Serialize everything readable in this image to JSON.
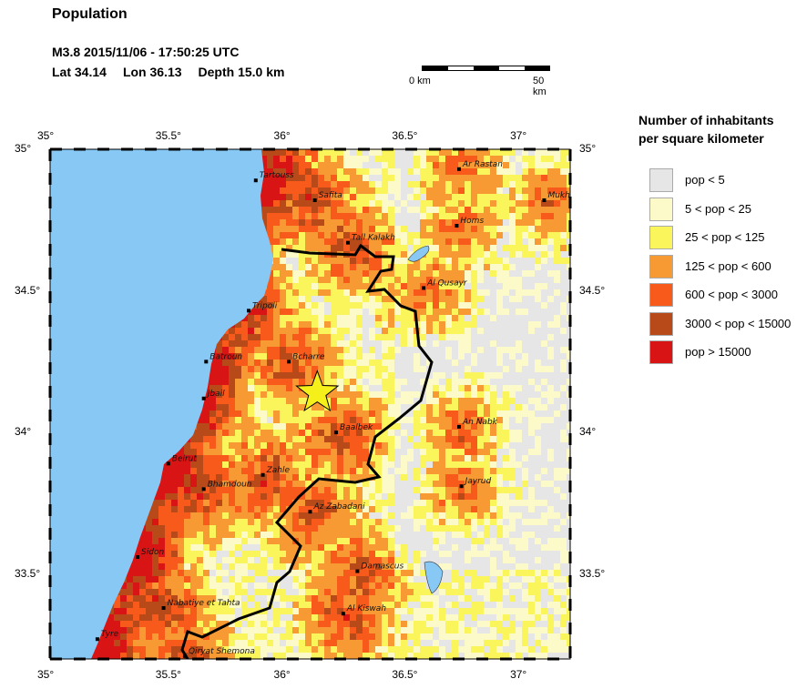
{
  "header": {
    "title": "Population",
    "event_line": "M3.8  2015/11/06 - 17:50:25 UTC",
    "lat": "Lat 34.14",
    "lon": "Lon  36.13",
    "depth": "Depth  15.0 km"
  },
  "scale_bar": {
    "start_label": "0 km",
    "end_label": "50 km"
  },
  "legend": {
    "title_line1": "Number of inhabitants",
    "title_line2": "per square kilometer",
    "items": [
      {
        "label": "pop < 5",
        "color": "#e6e6e6"
      },
      {
        "label": "5 < pop < 25",
        "color": "#fbfac8"
      },
      {
        "label": "25 < pop < 125",
        "color": "#faf55a"
      },
      {
        "label": "125 < pop < 600",
        "color": "#f79a33"
      },
      {
        "label": "600 < pop < 3000",
        "color": "#f75a1a"
      },
      {
        "label": "3000 < pop < 15000",
        "color": "#b84a1a"
      },
      {
        "label": "pop > 15000",
        "color": "#d81414"
      }
    ]
  },
  "axes": {
    "lon_ticks": [
      "35°",
      "35.5°",
      "36°",
      "36.5°",
      "37°"
    ],
    "lat_ticks": [
      "35°",
      "34.5°",
      "34°",
      "33.5°"
    ]
  },
  "map": {
    "sea_color": "#88c8f5",
    "epicenter": {
      "lat": 34.14,
      "lon": 36.13,
      "color": "#f5ef1a"
    },
    "cities": [
      {
        "name": "Tartouss",
        "lon": 35.87,
        "lat": 34.89
      },
      {
        "name": "Safita",
        "lon": 36.12,
        "lat": 34.82
      },
      {
        "name": "Ar Rastan",
        "lon": 36.73,
        "lat": 34.93
      },
      {
        "name": "Mukh",
        "lon": 37.09,
        "lat": 34.82
      },
      {
        "name": "Homs",
        "lon": 36.72,
        "lat": 34.73
      },
      {
        "name": "Tall Kalakh",
        "lon": 36.26,
        "lat": 34.67
      },
      {
        "name": "Al Qusayr",
        "lon": 36.58,
        "lat": 34.51
      },
      {
        "name": "Tripoli",
        "lon": 35.84,
        "lat": 34.43
      },
      {
        "name": "Batroun",
        "lon": 35.66,
        "lat": 34.25
      },
      {
        "name": "Bcharre",
        "lon": 36.01,
        "lat": 34.25
      },
      {
        "name": "Jbail",
        "lon": 35.65,
        "lat": 34.12
      },
      {
        "name": "Baalbek",
        "lon": 36.21,
        "lat": 34.0
      },
      {
        "name": "An Nabk",
        "lon": 36.73,
        "lat": 34.02
      },
      {
        "name": "Beirut",
        "lon": 35.5,
        "lat": 33.89
      },
      {
        "name": "Zahle",
        "lon": 35.9,
        "lat": 33.85
      },
      {
        "name": "Bhamdoun",
        "lon": 35.65,
        "lat": 33.8
      },
      {
        "name": "Jayrud",
        "lon": 36.74,
        "lat": 33.81
      },
      {
        "name": "Az Zabadani",
        "lon": 36.1,
        "lat": 33.72
      },
      {
        "name": "Sidon",
        "lon": 35.37,
        "lat": 33.56
      },
      {
        "name": "Damascus",
        "lon": 36.3,
        "lat": 33.51
      },
      {
        "name": "Nabatiye et Tahta",
        "lon": 35.48,
        "lat": 33.38
      },
      {
        "name": "Al Kiswah",
        "lon": 36.24,
        "lat": 33.36
      },
      {
        "name": "Tyre",
        "lon": 35.2,
        "lat": 33.27
      },
      {
        "name": "Qiryat Shemona",
        "lon": 35.57,
        "lat": 33.21
      }
    ]
  }
}
